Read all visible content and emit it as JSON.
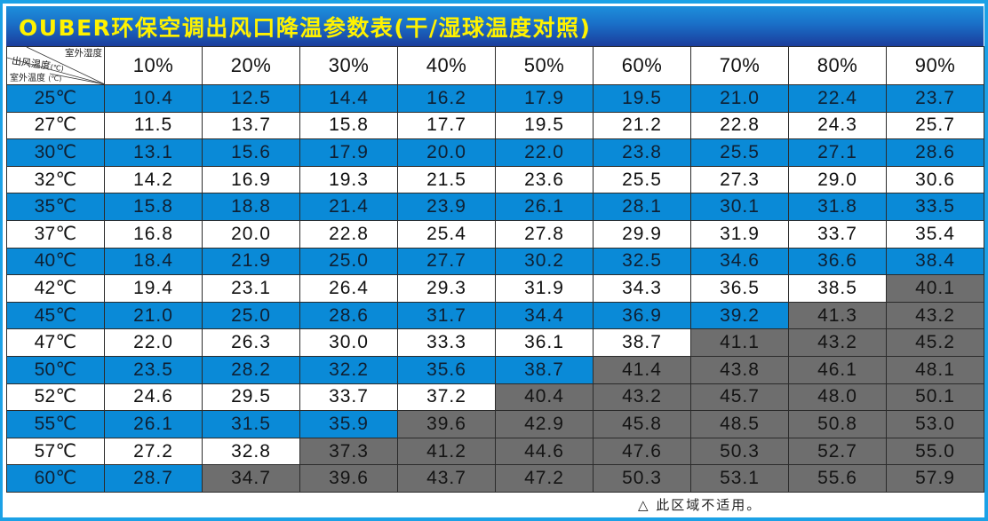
{
  "title": "OUBER环保空调出风口降温参数表(干/湿球温度对照)",
  "corner_header": {
    "top_label": "室外湿度",
    "middle_label": "出风温度",
    "middle_unit": "(℃)",
    "bottom_label": "室外温度",
    "bottom_unit": "(℃)"
  },
  "humidity_columns": [
    "10%",
    "20%",
    "30%",
    "40%",
    "50%",
    "60%",
    "70%",
    "80%",
    "90%"
  ],
  "colors": {
    "title_text": "#fff200",
    "title_bg_top": "#1d8fdc",
    "title_bg_bottom": "#1b3d9c",
    "row_blue": "#0a8ad7",
    "row_white": "#ffffff",
    "not_applicable_gray": "#6e6e6e",
    "frame_border": "#1ba1e6"
  },
  "rows": [
    {
      "temp": "25℃",
      "style": "blue",
      "values": [
        "10.4",
        "12.5",
        "14.4",
        "16.2",
        "17.9",
        "19.5",
        "21.0",
        "22.4",
        "23.7"
      ],
      "na_from": 9
    },
    {
      "temp": "27℃",
      "style": "white",
      "values": [
        "11.5",
        "13.7",
        "15.8",
        "17.7",
        "19.5",
        "21.2",
        "22.8",
        "24.3",
        "25.7"
      ],
      "na_from": 9
    },
    {
      "temp": "30℃",
      "style": "blue",
      "values": [
        "13.1",
        "15.6",
        "17.9",
        "20.0",
        "22.0",
        "23.8",
        "25.5",
        "27.1",
        "28.6"
      ],
      "na_from": 9
    },
    {
      "temp": "32℃",
      "style": "white",
      "values": [
        "14.2",
        "16.9",
        "19.3",
        "21.5",
        "23.6",
        "25.5",
        "27.3",
        "29.0",
        "30.6"
      ],
      "na_from": 9
    },
    {
      "temp": "35℃",
      "style": "blue",
      "values": [
        "15.8",
        "18.8",
        "21.4",
        "23.9",
        "26.1",
        "28.1",
        "30.1",
        "31.8",
        "33.5"
      ],
      "na_from": 9
    },
    {
      "temp": "37℃",
      "style": "white",
      "values": [
        "16.8",
        "20.0",
        "22.8",
        "25.4",
        "27.8",
        "29.9",
        "31.9",
        "33.7",
        "35.4"
      ],
      "na_from": 9
    },
    {
      "temp": "40℃",
      "style": "blue",
      "values": [
        "18.4",
        "21.9",
        "25.0",
        "27.7",
        "30.2",
        "32.5",
        "34.6",
        "36.6",
        "38.4"
      ],
      "na_from": 9
    },
    {
      "temp": "42℃",
      "style": "white",
      "values": [
        "19.4",
        "23.1",
        "26.4",
        "29.3",
        "31.9",
        "34.3",
        "36.5",
        "38.5",
        "40.1"
      ],
      "na_from": 8
    },
    {
      "temp": "45℃",
      "style": "blue",
      "values": [
        "21.0",
        "25.0",
        "28.6",
        "31.7",
        "34.4",
        "36.9",
        "39.2",
        "41.3",
        "43.2"
      ],
      "na_from": 7
    },
    {
      "temp": "47℃",
      "style": "white",
      "values": [
        "22.0",
        "26.3",
        "30.0",
        "33.3",
        "36.1",
        "38.7",
        "41.1",
        "43.2",
        "45.2"
      ],
      "na_from": 6
    },
    {
      "temp": "50℃",
      "style": "blue",
      "values": [
        "23.5",
        "28.2",
        "32.2",
        "35.6",
        "38.7",
        "41.4",
        "43.8",
        "46.1",
        "48.1"
      ],
      "na_from": 5
    },
    {
      "temp": "52℃",
      "style": "white",
      "values": [
        "24.6",
        "29.5",
        "33.7",
        "37.2",
        "40.4",
        "43.2",
        "45.7",
        "48.0",
        "50.1"
      ],
      "na_from": 4
    },
    {
      "temp": "55℃",
      "style": "blue",
      "values": [
        "26.1",
        "31.5",
        "35.9",
        "39.6",
        "42.9",
        "45.8",
        "48.5",
        "50.8",
        "53.0"
      ],
      "na_from": 3
    },
    {
      "temp": "57℃",
      "style": "white",
      "values": [
        "27.2",
        "32.8",
        "37.3",
        "41.2",
        "44.6",
        "47.6",
        "50.3",
        "52.7",
        "55.0"
      ],
      "na_from": 2
    },
    {
      "temp": "60℃",
      "style": "blue",
      "values": [
        "28.7",
        "34.7",
        "39.6",
        "43.7",
        "47.2",
        "50.3",
        "53.1",
        "55.6",
        "57.9"
      ],
      "na_from": 1
    }
  ],
  "footnote": "△ 此区域不适用。"
}
